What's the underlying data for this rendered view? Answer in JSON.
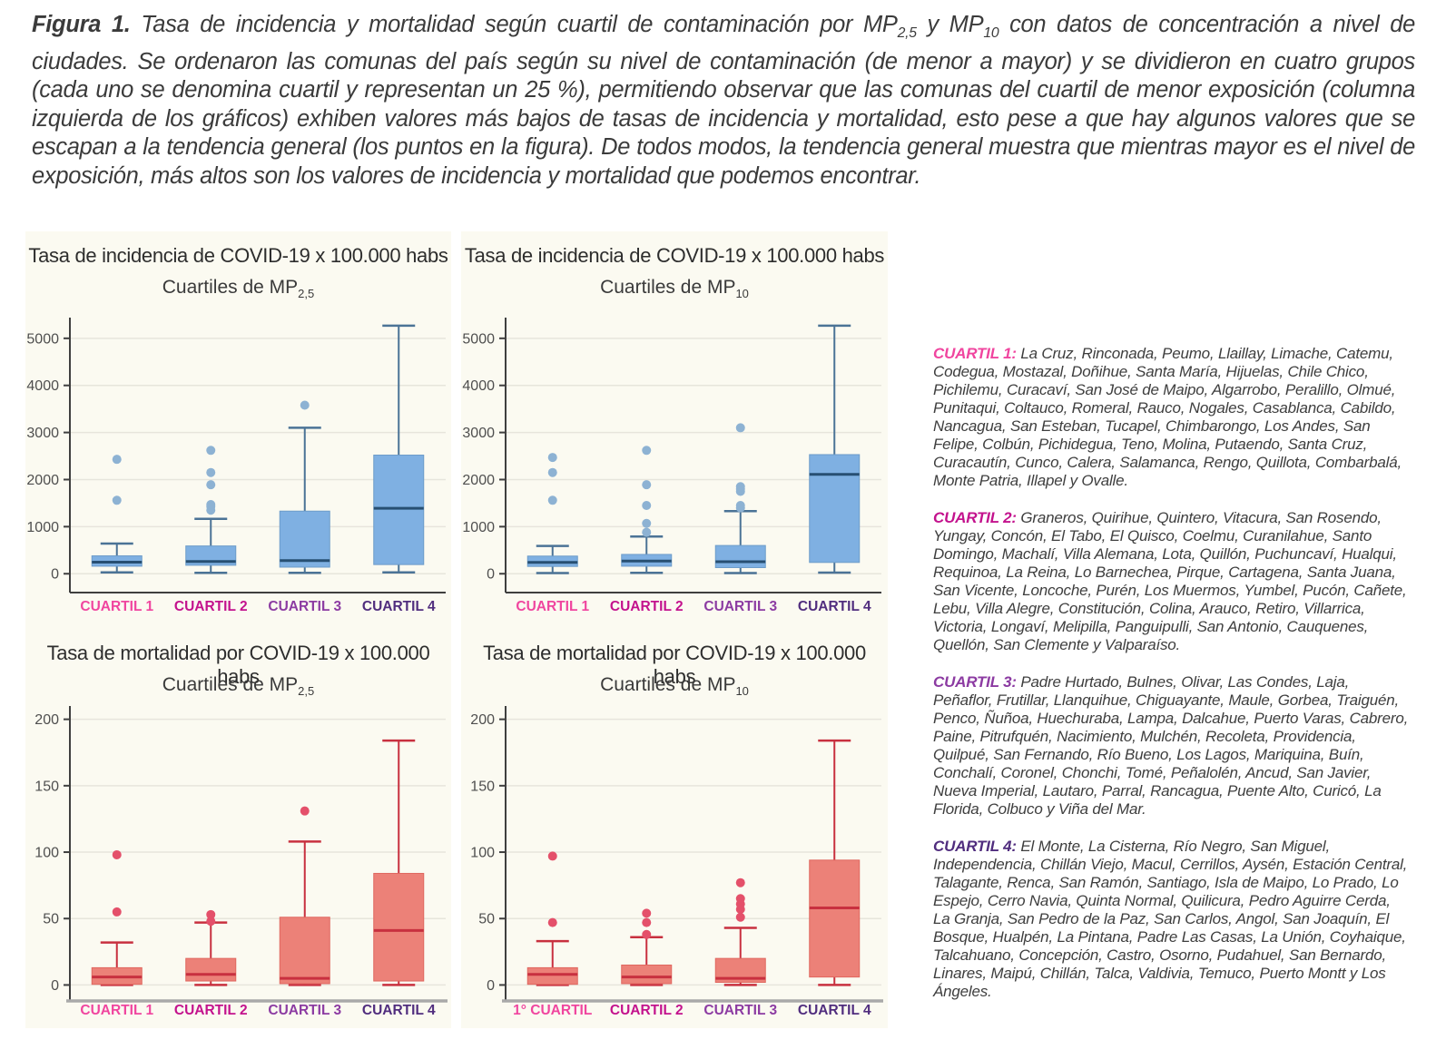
{
  "caption": {
    "label": "Figura 1.",
    "segments": [
      {
        "t": "text",
        "v": " Tasa de incidencia y mortalidad según cuartil de contaminación por MP"
      },
      {
        "t": "sub",
        "v": "2,5"
      },
      {
        "t": "text",
        "v": " y MP"
      },
      {
        "t": "sub",
        "v": "10"
      },
      {
        "t": "text",
        "v": " con datos de concentración a nivel de ciudades. Se ordenaron las comunas del país según su nivel de contaminación (de menor a mayor) y se dividieron en cuatro grupos (cada uno se denomina cuartil y representan un 25 %), permitiendo observar que las comunas del cuartil de menor exposición (columna izquierda de los gráficos) exhiben valores más bajos de tasas de incidencia y mortalidad, esto pese a que hay algunos valores que se escapan a la tendencia general (los puntos en la figura). De todos modos, la tendencia general muestra que mientras mayor es el nivel de exposición, más altos son los valores de incidencia y mortalidad que podemos encontrar."
      }
    ]
  },
  "colors": {
    "panel_bg": "#fbfaf1",
    "grid": "#e7e5dc",
    "axis": "#3f3f3f",
    "axis_gray": "#a9a9a9",
    "tick_text": "#4f4f4f",
    "title_text": "#2d2d2d",
    "quartile_labels": [
      "#f0459f",
      "#c3128d",
      "#8c3ba2",
      "#502d7e"
    ],
    "blue": {
      "box_fill": "#7fb0e2",
      "box_stroke": "#6d9cc9",
      "median": "#274f72",
      "whisker": "#4b7396",
      "outlier": "#8db2d3"
    },
    "red": {
      "box_fill": "#ec8178",
      "box_stroke": "#e0675f",
      "median": "#c8303f",
      "whisker": "#c8303f",
      "outlier": "#e4506a"
    }
  },
  "chart_data": [
    {
      "id": "incidencia-mp25",
      "type": "boxplot",
      "title": "Tasa de incidencia de COVID-19 x 100.000 habs",
      "subtitle_prefix": "Cuartiles de MP",
      "subtitle_sub": "2,5",
      "palette": "blue",
      "ylim": [
        -400,
        5440
      ],
      "yticks": [
        0,
        1000,
        2000,
        3000,
        4000,
        5000
      ],
      "categories": [
        "CUARTIL 1",
        "CUARTIL 2",
        "CUARTIL 3",
        "CUARTIL 4"
      ],
      "boxes": [
        {
          "low": 30,
          "q1": 160,
          "median": 245,
          "q3": 380,
          "high": 640,
          "outliers": [
            1560,
            2430
          ]
        },
        {
          "low": 20,
          "q1": 180,
          "median": 260,
          "q3": 590,
          "high": 1165,
          "outliers": [
            1350,
            1430,
            1470,
            1890,
            2150,
            2620
          ]
        },
        {
          "low": 20,
          "q1": 140,
          "median": 280,
          "q3": 1330,
          "high": 3100,
          "outliers": [
            3580
          ]
        },
        {
          "low": 30,
          "q1": 195,
          "median": 1390,
          "q3": 2520,
          "high": 5270,
          "outliers": []
        }
      ]
    },
    {
      "id": "incidencia-mp10",
      "type": "boxplot",
      "title": "Tasa de incidencia de COVID-19 x 100.000 habs",
      "subtitle_prefix": "Cuartiles de MP",
      "subtitle_sub": "10",
      "palette": "blue",
      "ylim": [
        -400,
        5440
      ],
      "yticks": [
        0,
        1000,
        2000,
        3000,
        4000,
        5000
      ],
      "categories": [
        "CUARTIL 1",
        "CUARTIL 2",
        "CUARTIL 3",
        "CUARTIL 4"
      ],
      "boxes": [
        {
          "low": 15,
          "q1": 155,
          "median": 240,
          "q3": 375,
          "high": 590,
          "outliers": [
            1560,
            2150,
            2470
          ]
        },
        {
          "low": 20,
          "q1": 160,
          "median": 270,
          "q3": 410,
          "high": 790,
          "outliers": [
            880,
            1070,
            1450,
            1890,
            2620
          ]
        },
        {
          "low": 15,
          "q1": 130,
          "median": 255,
          "q3": 600,
          "high": 1330,
          "outliers": [
            1400,
            1450,
            1750,
            1800,
            1850,
            3100
          ]
        },
        {
          "low": 25,
          "q1": 240,
          "median": 2110,
          "q3": 2530,
          "high": 5270,
          "outliers": []
        }
      ]
    },
    {
      "id": "mortalidad-mp25",
      "type": "boxplot",
      "title": "Tasa de mortalidad por COVID-19 x 100.000 habs",
      "subtitle_prefix": "Cuartiles de MP",
      "subtitle_sub": "2,5",
      "palette": "red",
      "ylim": [
        -12,
        210
      ],
      "yticks": [
        0,
        50,
        100,
        150,
        200
      ],
      "categories": [
        "CUARTIL 1",
        "CUARTIL 2",
        "CUARTIL 3",
        "CUARTIL 4"
      ],
      "boxes": [
        {
          "low": 0,
          "q1": 0.5,
          "median": 6,
          "q3": 13,
          "high": 32,
          "outliers": [
            55,
            98
          ]
        },
        {
          "low": 0,
          "q1": 3,
          "median": 8,
          "q3": 20,
          "high": 47,
          "outliers": [
            48,
            53
          ]
        },
        {
          "low": 0,
          "q1": 1,
          "median": 5,
          "q3": 51,
          "high": 108,
          "outliers": [
            131
          ]
        },
        {
          "low": 0,
          "q1": 3,
          "median": 41,
          "q3": 84,
          "high": 184,
          "outliers": []
        }
      ]
    },
    {
      "id": "mortalidad-mp10",
      "type": "boxplot",
      "title": "Tasa de mortalidad por COVID-19 x 100.000 habs",
      "subtitle_prefix": "Cuartiles de MP",
      "subtitle_sub": "10",
      "palette": "red",
      "ylim": [
        -12,
        210
      ],
      "yticks": [
        0,
        50,
        100,
        150,
        200
      ],
      "categories": [
        "1° CUARTIL",
        "CUARTIL 2",
        "CUARTIL 3",
        "CUARTIL 4"
      ],
      "boxes": [
        {
          "low": 0,
          "q1": 0.5,
          "median": 8,
          "q3": 13,
          "high": 33,
          "outliers": [
            47,
            97
          ]
        },
        {
          "low": 0,
          "q1": 1,
          "median": 6,
          "q3": 15,
          "high": 36,
          "outliers": [
            38,
            47,
            54
          ]
        },
        {
          "low": 0,
          "q1": 2,
          "median": 5,
          "q3": 20,
          "high": 43,
          "outliers": [
            51,
            57,
            61,
            65,
            77
          ]
        },
        {
          "low": 0,
          "q1": 6,
          "median": 58,
          "q3": 94,
          "high": 184,
          "outliers": []
        }
      ]
    }
  ],
  "legend": {
    "blocks": [
      {
        "label": "CUARTIL 1:",
        "color": "#f0459f",
        "text": " La Cruz, Rinconada, Peumo, Llaillay, Limache, Catemu, Codegua, Mostazal, Doñihue, Santa María, Hijuelas, Chile Chico, Pichilemu, Curacaví, San José de Maipo, Algarrobo, Peralillo, Olmué, Punitaqui, Coltauco, Romeral, Rauco, Nogales, Casablanca, Cabildo, Nancagua, San Esteban, Tucapel, Chimbarongo, Los Andes, San Felipe, Colbún, Pichidegua, Teno, Molina, Putaendo, Santa Cruz, Curacautín, Cunco, Calera, Salamanca, Rengo, Quillota, Combarbalá, Monte Patria, Illapel y Ovalle."
      },
      {
        "label": "CUARTIL 2:",
        "color": "#c3128d",
        "text": " Graneros, Quirihue, Quintero, Vitacura, San Rosendo, Yungay, Concón, El Tabo, El Quisco, Coelmu, Curanilahue, Santo Domingo, Machalí, Villa Alemana, Lota, Quillón, Puchuncaví, Hualqui, Requinoa, La Reina, Lo Barnechea, Pirque, Cartagena, Santa Juana, San Vicente, Loncoche, Purén, Los Muermos, Yumbel, Pucón, Cañete, Lebu, Villa Alegre, Constitución, Colina, Arauco, Retiro, Villarrica, Victoria, Longaví, Melipilla, Panguipulli, San Antonio, Cauquenes, Quellón, San Clemente y Valparaíso."
      },
      {
        "label": "CUARTIL 3:",
        "color": "#8c3ba2",
        "text": " Padre Hurtado, Bulnes, Olivar, Las Condes, Laja, Peñaflor, Frutillar, Llanquihue, Chiguayante, Maule, Gorbea, Traiguén, Penco, Ñuñoa, Huechuraba, Lampa, Dalcahue, Puerto Varas, Cabrero, Paine, Pitrufquén, Nacimiento, Mulchén, Recoleta, Providencia, Quilpué, San Fernando, Río Bueno, Los Lagos, Mariquina, Buín, Conchalí, Coronel, Chonchi, Tomé, Peñalolén, Ancud, San Javier, Nueva Imperial, Lautaro, Parral, Rancagua, Puente Alto, Curicó, La Florida, Colbuco y Viña del Mar."
      },
      {
        "label": "CUARTIL 4:",
        "color": "#502d7e",
        "text": " El Monte, La Cisterna, Río Negro, San Miguel, Independencia, Chillán Viejo, Macul, Cerrillos, Aysén, Estación Central, Talagante, Renca, San Ramón, Santiago, Isla de Maipo, Lo Prado, Lo Espejo, Cerro Navia, Quinta Normal, Quilicura, Pedro Aguirre Cerda, La Granja, San Pedro de la Paz, San Carlos, Angol, San Joaquín, El Bosque, Hualpén, La Pintana, Padre Las Casas, La Unión, Coyhaique, Talcahuano, Concepción, Castro, Osorno, Pudahuel, San Bernardo, Linares, Maipú, Chillán, Talca, Valdivia, Temuco, Puerto Montt y Los Ángeles."
      }
    ]
  }
}
